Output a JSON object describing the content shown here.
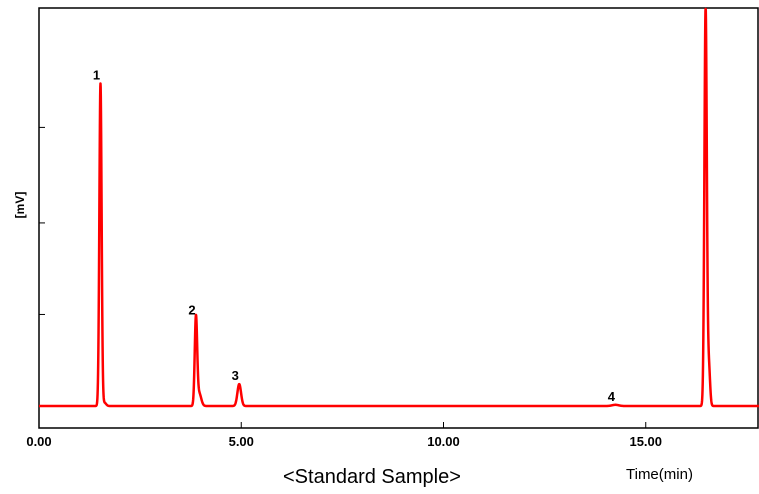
{
  "chart_data": {
    "type": "line",
    "title": "",
    "xlabel": "Time(min)",
    "ylabel": "[mV]",
    "caption": "<Standard Sample>",
    "xlim": [
      0,
      18.2
    ],
    "ylim": [
      0,
      100
    ],
    "x_ticks": [
      {
        "value": 0,
        "label": "0.00"
      },
      {
        "value": 5,
        "label": "5.00"
      },
      {
        "value": 10,
        "label": "10.00"
      },
      {
        "value": 15,
        "label": "15.00"
      }
    ],
    "y_ticks": [
      23,
      46,
      70
    ],
    "line_color": "#ff0000",
    "baseline": 0,
    "peaks": [
      {
        "label": "1",
        "rt": 1.52,
        "height": 81
      },
      {
        "label": "2",
        "rt": 3.88,
        "height": 22
      },
      {
        "label": "3",
        "rt": 4.95,
        "height": 5.5
      },
      {
        "label": "4",
        "rt": 14.25,
        "height": 0.3
      },
      {
        "label": "",
        "rt": 16.48,
        "height": 100
      }
    ]
  }
}
